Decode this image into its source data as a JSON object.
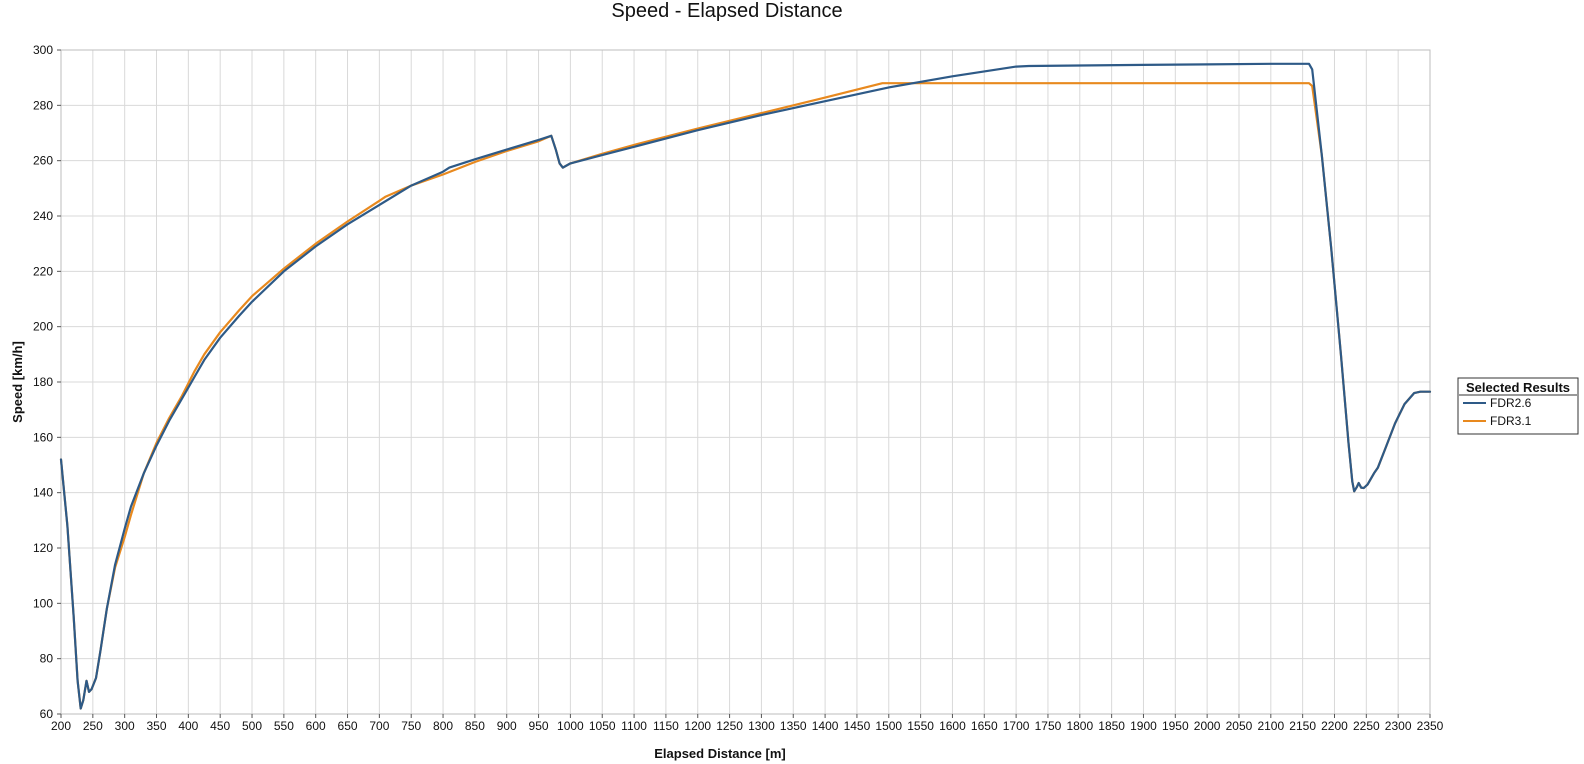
{
  "chart_data": {
    "type": "line",
    "title": "Speed - Elapsed Distance",
    "xlabel": "Elapsed Distance [m]",
    "ylabel": "Speed [km/h]",
    "xlim": [
      200,
      2350
    ],
    "ylim": [
      60,
      300
    ],
    "x_ticks": [
      "200",
      "250",
      "300",
      "350",
      "400",
      "450",
      "500",
      "550",
      "600",
      "650",
      "700",
      "750",
      "800",
      "850",
      "900",
      "950",
      "1000",
      "1050",
      "1100",
      "1150",
      "1200",
      "1250",
      "1300",
      "1350",
      "1400",
      "1450",
      "1500",
      "1550",
      "1600",
      "1650",
      "1700",
      "1750",
      "1800",
      "1850",
      "1900",
      "1950",
      "2000",
      "2050",
      "2100",
      "2150",
      "2200",
      "2250",
      "2300",
      "2350"
    ],
    "y_ticks": [
      "60",
      "80",
      "100",
      "120",
      "140",
      "160",
      "180",
      "200",
      "220",
      "240",
      "260",
      "280",
      "300"
    ],
    "grid": true,
    "legend": {
      "title": "Selected Results",
      "placement": "right"
    },
    "series": [
      {
        "name": "FDR2.6",
        "color": "#2e5a87",
        "points": [
          [
            200,
            152
          ],
          [
            210,
            128
          ],
          [
            220,
            95
          ],
          [
            226,
            72
          ],
          [
            231,
            62
          ],
          [
            235,
            65
          ],
          [
            240,
            72
          ],
          [
            244,
            68
          ],
          [
            248,
            69
          ],
          [
            255,
            73
          ],
          [
            262,
            83
          ],
          [
            272,
            98
          ],
          [
            285,
            114
          ],
          [
            300,
            127
          ],
          [
            310,
            135
          ],
          [
            330,
            147
          ],
          [
            350,
            157
          ],
          [
            370,
            166
          ],
          [
            390,
            174
          ],
          [
            410,
            182
          ],
          [
            425,
            188
          ],
          [
            450,
            196
          ],
          [
            480,
            204
          ],
          [
            500,
            209
          ],
          [
            550,
            220
          ],
          [
            600,
            229
          ],
          [
            650,
            237
          ],
          [
            700,
            244
          ],
          [
            750,
            251
          ],
          [
            800,
            256
          ],
          [
            810,
            257.5
          ],
          [
            850,
            260.5
          ],
          [
            900,
            264
          ],
          [
            950,
            267.5
          ],
          [
            970,
            269
          ],
          [
            977,
            264
          ],
          [
            983,
            259
          ],
          [
            988,
            257.5
          ],
          [
            1000,
            259
          ],
          [
            1050,
            262
          ],
          [
            1100,
            265
          ],
          [
            1200,
            271
          ],
          [
            1300,
            276.5
          ],
          [
            1400,
            281.5
          ],
          [
            1500,
            286.5
          ],
          [
            1600,
            290.5
          ],
          [
            1700,
            294
          ],
          [
            1720,
            294.2
          ],
          [
            1800,
            294.4
          ],
          [
            1900,
            294.6
          ],
          [
            2000,
            294.8
          ],
          [
            2100,
            295
          ],
          [
            2160,
            295
          ],
          [
            2165,
            293
          ],
          [
            2180,
            262
          ],
          [
            2195,
            228
          ],
          [
            2210,
            190
          ],
          [
            2222,
            158
          ],
          [
            2228,
            144
          ],
          [
            2231,
            140.5
          ],
          [
            2235,
            142
          ],
          [
            2238,
            143.5
          ],
          [
            2242,
            141.8
          ],
          [
            2246,
            141.7
          ],
          [
            2252,
            143
          ],
          [
            2262,
            147
          ],
          [
            2268,
            149
          ],
          [
            2280,
            156
          ],
          [
            2295,
            165
          ],
          [
            2310,
            172
          ],
          [
            2325,
            176
          ],
          [
            2335,
            176.5
          ],
          [
            2350,
            176.5
          ]
        ]
      },
      {
        "name": "FDR3.1",
        "color": "#e8891e",
        "points": [
          [
            200,
            152
          ],
          [
            210,
            128
          ],
          [
            220,
            95
          ],
          [
            226,
            72
          ],
          [
            231,
            62
          ],
          [
            235,
            65
          ],
          [
            240,
            72
          ],
          [
            244,
            68
          ],
          [
            248,
            69
          ],
          [
            255,
            73
          ],
          [
            262,
            83
          ],
          [
            272,
            98
          ],
          [
            285,
            113
          ],
          [
            300,
            124
          ],
          [
            310,
            132
          ],
          [
            330,
            147
          ],
          [
            350,
            158
          ],
          [
            370,
            167
          ],
          [
            390,
            175
          ],
          [
            410,
            184
          ],
          [
            425,
            190
          ],
          [
            450,
            198
          ],
          [
            480,
            206
          ],
          [
            500,
            211
          ],
          [
            525,
            216
          ],
          [
            550,
            221
          ],
          [
            600,
            230
          ],
          [
            650,
            238
          ],
          [
            700,
            245.5
          ],
          [
            710,
            247
          ],
          [
            750,
            251
          ],
          [
            800,
            255
          ],
          [
            850,
            259.5
          ],
          [
            900,
            263.5
          ],
          [
            950,
            267
          ],
          [
            965,
            268.5
          ],
          [
            970,
            269
          ],
          [
            977,
            264
          ],
          [
            983,
            259
          ],
          [
            988,
            257.5
          ],
          [
            1000,
            259
          ],
          [
            1050,
            262.5
          ],
          [
            1100,
            265.7
          ],
          [
            1200,
            271.6
          ],
          [
            1300,
            277.2
          ],
          [
            1400,
            282.8
          ],
          [
            1490,
            288
          ],
          [
            1500,
            288
          ],
          [
            1600,
            288
          ],
          [
            1800,
            288
          ],
          [
            2000,
            288
          ],
          [
            2100,
            288
          ],
          [
            2160,
            288
          ],
          [
            2165,
            287
          ],
          [
            2180,
            262
          ],
          [
            2195,
            228
          ],
          [
            2210,
            190
          ],
          [
            2222,
            158
          ],
          [
            2228,
            144
          ],
          [
            2231,
            140.5
          ],
          [
            2235,
            142
          ],
          [
            2238,
            143.5
          ],
          [
            2242,
            141.8
          ],
          [
            2246,
            141.7
          ],
          [
            2252,
            143
          ],
          [
            2262,
            147
          ],
          [
            2268,
            149
          ],
          [
            2280,
            156
          ],
          [
            2295,
            165
          ],
          [
            2310,
            172
          ],
          [
            2325,
            176
          ],
          [
            2335,
            176.5
          ],
          [
            2350,
            176.5
          ]
        ]
      }
    ]
  }
}
